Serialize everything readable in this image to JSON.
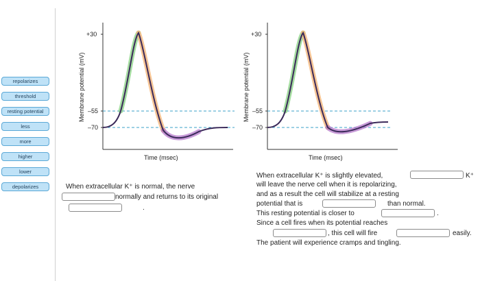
{
  "answer_bank": {
    "items": [
      "repolarizes",
      "threshold",
      "resting potential",
      "less",
      "more",
      "higher",
      "lower",
      "depolarizes"
    ]
  },
  "graphs": [
    {
      "ylabel": "Membrane potential (mV)",
      "xlabel": "Time (msec)",
      "tick_top": "+30",
      "tick_mid": "–55",
      "tick_low": "–70"
    },
    {
      "ylabel": "Membrane potential (mV)",
      "xlabel": "Time (msec)",
      "tick_top": "+30",
      "tick_mid": "–55",
      "tick_low": "–70"
    }
  ],
  "left_text": {
    "line1": "When extracellular K⁺ is normal, the nerve",
    "line2": "normally and returns to its original",
    "line3": "."
  },
  "right_text": {
    "l1a": "When extracellular K⁺ is slightly elevated,",
    "l1b": "K⁺",
    "l2": "will leave the nerve cell when it is repolarizing,",
    "l3": "and as a result the cell will stabilize at a resting",
    "l4a": "potential that is",
    "l4b": "than normal.",
    "l5a": "This resting potential is closer to",
    "l5b": ".",
    "l6": "Since a cell fires when its potential reaches",
    "l7a": ", this cell will fire",
    "l7b": "easily.",
    "l8": "The patient will experience cramps and tingling."
  },
  "colors": {
    "chip_bg": "#bfe2f7",
    "chip_border": "#5aa8d6",
    "dash": "#3aa0c8",
    "trace": "#3b2a5a",
    "glow_up": "#8fd48a",
    "glow_down": "#f4b77a",
    "glow_hyper": "#b070c8"
  }
}
